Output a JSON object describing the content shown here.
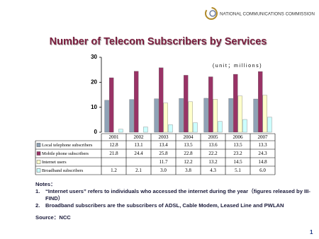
{
  "header": {
    "logo_text": "NATIONAL COMMUNICATIONS COMMISSION"
  },
  "chart_data": {
    "type": "bar",
    "title": "Number of Telecom Subscribers by Services",
    "annotation": "(unit；millions)",
    "categories": [
      "2001",
      "2002",
      "2003",
      "2004",
      "2005",
      "2006",
      "2007"
    ],
    "series": [
      {
        "name": "Local telephone subscribers",
        "color": "#8ea2b6",
        "values": [
          12.8,
          13.1,
          13.4,
          13.5,
          13.6,
          13.5,
          13.3
        ]
      },
      {
        "name": "Mobile phone subscribers",
        "color": "#993366",
        "values": [
          21.8,
          24.4,
          25.8,
          22.8,
          22.2,
          23.2,
          24.3
        ]
      },
      {
        "name": "Internet users",
        "color": "#ffffcc",
        "values": [
          null,
          null,
          11.7,
          12.2,
          13.2,
          14.5,
          14.8
        ]
      },
      {
        "name": "Broadband subscribers",
        "color": "#ccffff",
        "values": [
          1.2,
          2.1,
          3.0,
          3.8,
          4.3,
          5.1,
          6.0
        ],
        "value_labels": [
          "1.2",
          "2.1",
          "3.0",
          "3.8",
          "4.3",
          "5.1",
          "6.0"
        ]
      }
    ],
    "ylim": [
      0,
      30
    ],
    "yticks": [
      0,
      10,
      20,
      30
    ],
    "grid": false
  },
  "notes": {
    "title": "Notes：",
    "items": [
      {
        "number": "1.",
        "text": "“Internet users” refers to individuals who accessed the internet during the year（figures released by III-FIND）"
      },
      {
        "number": "2.",
        "text": "Broadband subscribers are the subscribers of ADSL, Cable Modem, Leased Line and PWLAN"
      }
    ]
  },
  "source": "Source：NCC",
  "page_number": "1"
}
